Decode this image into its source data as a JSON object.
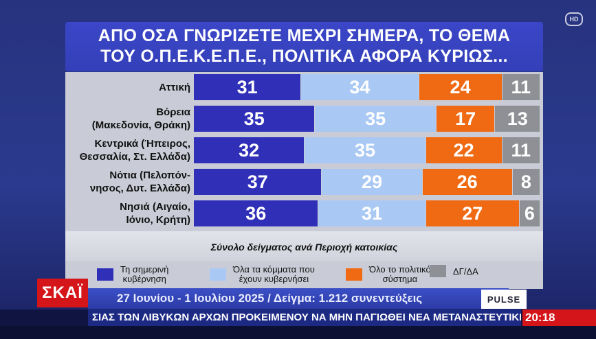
{
  "title_line1": "ΑΠΟ ΟΣΑ ΓΝΩΡΙΖΕΤΕ ΜΕΧΡΙ ΣΗΜΕΡΑ, ΤΟ ΘΕΜΑ",
  "title_line2": "ΤΟΥ Ο.Π.Ε.Κ.Ε.Π.Ε., ΠΟΛΙΤΙΚΑ ΑΦΟΡΑ ΚΥΡΙΩΣ...",
  "subtitle": "Σύνολο δείγματος ανά Περιοχή κατοικίας",
  "chart_data": {
    "type": "bar",
    "stacked": true,
    "orientation": "horizontal",
    "categories": [
      [
        "Αττική"
      ],
      [
        "Βόρεια",
        "(Μακεδονία, Θράκη)"
      ],
      [
        "Κεντρικά (Ήπειρος,",
        "Θεσσαλία, Στ. Ελλάδα)"
      ],
      [
        "Νότια (Πελοπόν-",
        "νησος, Δυτ. Ελλάδα)"
      ],
      [
        "Νησιά (Αιγαίο,",
        "Ιόνιο, Κρήτη)"
      ]
    ],
    "series": [
      {
        "name": "Τη σημερινή κυβέρνηση",
        "color": "#2f2fb8",
        "values": [
          31,
          35,
          32,
          37,
          36
        ]
      },
      {
        "name": "Όλα τα κόμματα που έχουν κυβερνήσει",
        "color": "#a9c9f4",
        "values": [
          34,
          35,
          35,
          29,
          31
        ]
      },
      {
        "name": "Όλο το πολιτικό σύστημα",
        "color": "#ef6a12",
        "values": [
          24,
          17,
          22,
          26,
          27
        ]
      },
      {
        "name": "ΔΓ/ΔΑ",
        "color": "#8f9096",
        "values": [
          11,
          13,
          11,
          8,
          6
        ]
      }
    ],
    "xlim": [
      0,
      100
    ],
    "legend_position": "bottom"
  },
  "legend": [
    {
      "line1": "Τη σημερινή",
      "line2": "κυβέρνηση",
      "color": "#2f2fb8"
    },
    {
      "line1": "Όλα τα κόμματα που",
      "line2": "έχουν κυβερνήσει",
      "color": "#a9c9f4"
    },
    {
      "line1": "Όλο το πολιτικό",
      "line2": "σύστημα",
      "color": "#ef6a12"
    },
    {
      "line1": "ΔΓ/ΔΑ",
      "line2": "",
      "color": "#8f9096"
    }
  ],
  "channel_logo": "ΣΚΑΪ",
  "info_text": "27 Ιουνίου - 1 Ιουλίου 2025 / Δείγμα: 1.212 συνεντεύξεις",
  "pulse_logo": "PULSE",
  "ticker_text": "ΣΙΑΣ ΤΩΝ ΛΙΒΥΚΩΝ ΑΡΧΩΝ ΠΡΟΚΕΙΜΕΝΟΥ ΝΑ ΜΗΝ ΠΑΓΙΩΘΕΙ ΝΕΑ ΜΕΤΑΝΑΣΤΕΥΤΙΚΗ ΟΔΟΣ Α",
  "clock": "20:18",
  "hd_badge": "HD"
}
